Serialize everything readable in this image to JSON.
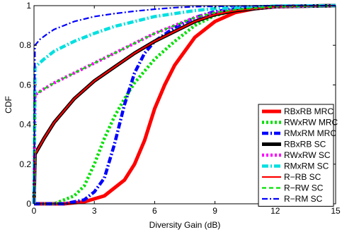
{
  "chart_data": {
    "type": "line",
    "title": "",
    "xlabel": "Diversity Gain (dB)",
    "ylabel": "CDF",
    "xlim": [
      0,
      15
    ],
    "ylim": [
      0,
      1
    ],
    "xticks": [
      "0",
      "3",
      "6",
      "9",
      "12",
      "15"
    ],
    "yticks": [
      "0",
      "0.2",
      "0.4",
      "0.6",
      "0.8",
      "1"
    ],
    "grid": false,
    "legend_position": "bottom-right",
    "series": [
      {
        "name": "RBxRB MRC",
        "color": "#ff0000",
        "style": "solid-thick",
        "x": [
          0,
          1.5,
          2.5,
          3.5,
          4.5,
          5.0,
          5.5,
          6.0,
          6.5,
          7.0,
          8.0,
          9.0,
          10.0,
          11.0,
          12.0,
          15.0
        ],
        "y": [
          0,
          0.0,
          0.01,
          0.04,
          0.12,
          0.2,
          0.32,
          0.48,
          0.6,
          0.7,
          0.84,
          0.92,
          0.965,
          0.985,
          0.995,
          1.0
        ]
      },
      {
        "name": "RWxRW MRC",
        "color": "#00e000",
        "style": "dotted-thick",
        "x": [
          0,
          1.0,
          2.0,
          2.5,
          3.0,
          3.5,
          4.0,
          4.5,
          5.0,
          5.5,
          6.0,
          7.0,
          8.0,
          9.0,
          10.0,
          12.0,
          15.0
        ],
        "y": [
          0,
          0.0,
          0.04,
          0.09,
          0.2,
          0.33,
          0.44,
          0.53,
          0.61,
          0.67,
          0.73,
          0.82,
          0.9,
          0.95,
          0.975,
          0.995,
          1.0
        ]
      },
      {
        "name": "RMxRM MRC",
        "color": "#0000ff",
        "style": "dashdot-thick",
        "x": [
          0,
          1.5,
          2.5,
          3.0,
          3.5,
          4.0,
          4.5,
          5.0,
          5.5,
          6.0,
          7.0,
          8.0,
          9.0,
          10.0,
          12.0,
          15.0
        ],
        "y": [
          0,
          0.0,
          0.02,
          0.06,
          0.13,
          0.3,
          0.5,
          0.66,
          0.76,
          0.82,
          0.89,
          0.94,
          0.97,
          0.985,
          0.997,
          1.0
        ]
      },
      {
        "name": "RBxRB SC",
        "color": "#000000",
        "style": "solid-thick",
        "x": [
          0,
          0.05,
          0.5,
          1.0,
          2.0,
          3.0,
          4.0,
          5.0,
          6.0,
          7.0,
          8.0,
          9.0,
          10.0,
          12.0,
          15.0
        ],
        "y": [
          0,
          0.25,
          0.33,
          0.41,
          0.53,
          0.62,
          0.69,
          0.76,
          0.82,
          0.87,
          0.92,
          0.955,
          0.975,
          0.995,
          1.0
        ]
      },
      {
        "name": "RWxRW SC",
        "color": "#ff00ff",
        "style": "dotted-thick",
        "x": [
          0,
          0.05,
          0.5,
          1.0,
          2.0,
          3.0,
          4.0,
          5.0,
          6.0,
          7.0,
          8.0,
          9.0,
          10.0,
          12.0,
          15.0
        ],
        "y": [
          0,
          0.55,
          0.58,
          0.61,
          0.66,
          0.71,
          0.76,
          0.81,
          0.86,
          0.9,
          0.94,
          0.965,
          0.98,
          0.995,
          1.0
        ]
      },
      {
        "name": "RMxRM SC",
        "color": "#00e0e0",
        "style": "dashdot-thick",
        "x": [
          0,
          0.05,
          0.5,
          1.0,
          2.0,
          3.0,
          4.0,
          5.0,
          6.0,
          7.0,
          8.0,
          9.0,
          10.0,
          12.0,
          15.0
        ],
        "y": [
          0,
          0.69,
          0.73,
          0.77,
          0.82,
          0.86,
          0.895,
          0.92,
          0.945,
          0.96,
          0.975,
          0.985,
          0.99,
          0.998,
          1.0
        ]
      },
      {
        "name": "R−RB SC",
        "color": "#ff0000",
        "style": "solid",
        "x": [
          0,
          0.05,
          0.5,
          1.0,
          2.0,
          3.0,
          4.0,
          5.0,
          6.0,
          7.0,
          8.0,
          9.0,
          10.0,
          12.0,
          15.0
        ],
        "y": [
          0,
          0.25,
          0.33,
          0.41,
          0.53,
          0.62,
          0.69,
          0.76,
          0.82,
          0.87,
          0.92,
          0.955,
          0.975,
          0.995,
          1.0
        ]
      },
      {
        "name": "R−RW SC",
        "color": "#00e000",
        "style": "dashed",
        "x": [
          0,
          0.05,
          0.5,
          1.0,
          2.0,
          3.0,
          4.0,
          5.0,
          6.0,
          7.0,
          8.0,
          9.0,
          10.0,
          12.0,
          15.0
        ],
        "y": [
          0,
          0.55,
          0.58,
          0.61,
          0.66,
          0.71,
          0.76,
          0.81,
          0.86,
          0.9,
          0.94,
          0.965,
          0.98,
          0.995,
          1.0
        ]
      },
      {
        "name": "R−RM SC",
        "color": "#0000ff",
        "style": "dashdot",
        "x": [
          0,
          0.05,
          0.3,
          0.7,
          1.0,
          1.5,
          2.0,
          3.0,
          4.0,
          5.0,
          6.0,
          7.0,
          8.0,
          10.0,
          12.0,
          15.0
        ],
        "y": [
          0,
          0.8,
          0.83,
          0.86,
          0.88,
          0.9,
          0.92,
          0.945,
          0.96,
          0.972,
          0.982,
          0.99,
          0.995,
          0.998,
          1.0,
          1.0
        ]
      }
    ]
  }
}
